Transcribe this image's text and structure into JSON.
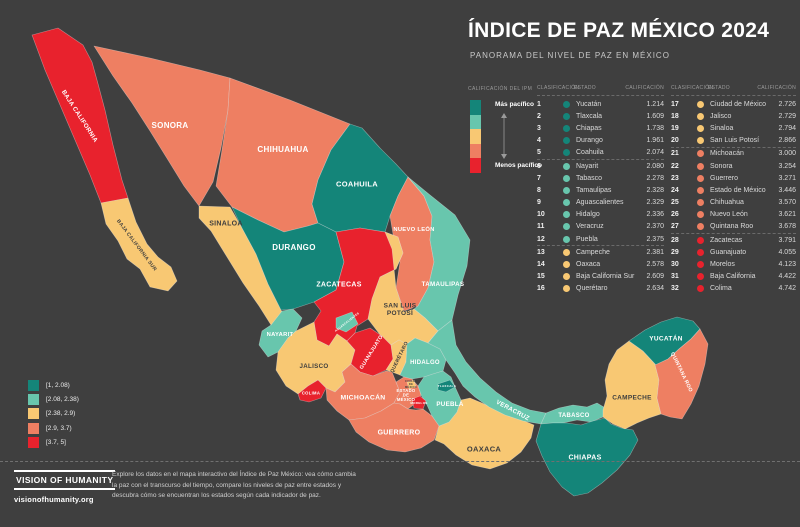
{
  "header": {
    "title": "ÍNDICE DE PAZ MÉXICO 2024",
    "subtitle": "PANORAMA DEL NIVEL DE PAZ EN MÉXICO"
  },
  "colors": {
    "dark_teal": "#148579",
    "light_teal": "#68c6ad",
    "amber": "#f8c873",
    "salmon": "#ee7f62",
    "red": "#e8222d",
    "background": "#3f3f3f"
  },
  "score_legend": {
    "heading": "CALIFICACIÓN DEL IPM",
    "top_label": "Más pacífico",
    "bottom_label": "Menos pacífico"
  },
  "range_legend": [
    {
      "label": "[1, 2.08)",
      "color_key": "dark_teal"
    },
    {
      "label": "[2.08, 2.38)",
      "color_key": "light_teal"
    },
    {
      "label": "[2.38, 2.9)",
      "color_key": "amber"
    },
    {
      "label": "[2.9, 3.7)",
      "color_key": "salmon"
    },
    {
      "label": "[3.7, 5]",
      "color_key": "red"
    }
  ],
  "table": {
    "headers": {
      "rank": "CLASIFICACIÓN",
      "state": "ESTADO",
      "score": "CALIFICACIÓN"
    },
    "group_breaks": [
      6,
      13,
      21,
      28
    ],
    "rows": [
      {
        "rank": 1,
        "state": "Yucatán",
        "score": "1.214",
        "color_key": "dark_teal"
      },
      {
        "rank": 2,
        "state": "Tlaxcala",
        "score": "1.609",
        "color_key": "dark_teal"
      },
      {
        "rank": 3,
        "state": "Chiapas",
        "score": "1.738",
        "color_key": "dark_teal"
      },
      {
        "rank": 4,
        "state": "Durango",
        "score": "1.961",
        "color_key": "dark_teal"
      },
      {
        "rank": 5,
        "state": "Coahuila",
        "score": "2.074",
        "color_key": "dark_teal"
      },
      {
        "rank": 6,
        "state": "Nayarit",
        "score": "2.080",
        "color_key": "light_teal"
      },
      {
        "rank": 7,
        "state": "Tabasco",
        "score": "2.278",
        "color_key": "light_teal"
      },
      {
        "rank": 8,
        "state": "Tamaulipas",
        "score": "2.328",
        "color_key": "light_teal"
      },
      {
        "rank": 9,
        "state": "Aguascalientes",
        "score": "2.329",
        "color_key": "light_teal"
      },
      {
        "rank": 10,
        "state": "Hidalgo",
        "score": "2.336",
        "color_key": "light_teal"
      },
      {
        "rank": 11,
        "state": "Veracruz",
        "score": "2.370",
        "color_key": "light_teal"
      },
      {
        "rank": 12,
        "state": "Puebla",
        "score": "2.375",
        "color_key": "light_teal"
      },
      {
        "rank": 13,
        "state": "Campeche",
        "score": "2.381",
        "color_key": "amber"
      },
      {
        "rank": 14,
        "state": "Oaxaca",
        "score": "2.578",
        "color_key": "amber"
      },
      {
        "rank": 15,
        "state": "Baja California Sur",
        "score": "2.609",
        "color_key": "amber"
      },
      {
        "rank": 16,
        "state": "Querétaro",
        "score": "2.634",
        "color_key": "amber"
      },
      {
        "rank": 17,
        "state": "Ciudad de México",
        "score": "2.726",
        "color_key": "amber"
      },
      {
        "rank": 18,
        "state": "Jalisco",
        "score": "2.729",
        "color_key": "amber"
      },
      {
        "rank": 19,
        "state": "Sinaloa",
        "score": "2.794",
        "color_key": "amber"
      },
      {
        "rank": 20,
        "state": "San Luis Potosí",
        "score": "2.866",
        "color_key": "amber"
      },
      {
        "rank": 21,
        "state": "Michoacán",
        "score": "3.000",
        "color_key": "salmon"
      },
      {
        "rank": 22,
        "state": "Sonora",
        "score": "3.254",
        "color_key": "salmon"
      },
      {
        "rank": 23,
        "state": "Guerrero",
        "score": "3.271",
        "color_key": "salmon"
      },
      {
        "rank": 24,
        "state": "Estado de México",
        "score": "3.446",
        "color_key": "salmon"
      },
      {
        "rank": 25,
        "state": "Chihuahua",
        "score": "3.570",
        "color_key": "salmon"
      },
      {
        "rank": 26,
        "state": "Nuevo León",
        "score": "3.621",
        "color_key": "salmon"
      },
      {
        "rank": 27,
        "state": "Quintana Roo",
        "score": "3.678",
        "color_key": "salmon"
      },
      {
        "rank": 28,
        "state": "Zacatecas",
        "score": "3.791",
        "color_key": "red"
      },
      {
        "rank": 29,
        "state": "Guanajuato",
        "score": "4.055",
        "color_key": "red"
      },
      {
        "rank": 30,
        "state": "Morelos",
        "score": "4.123",
        "color_key": "red"
      },
      {
        "rank": 31,
        "state": "Baja California",
        "score": "4.422",
        "color_key": "red"
      },
      {
        "rank": 32,
        "state": "Colima",
        "score": "4.742",
        "color_key": "red"
      }
    ]
  },
  "map": {
    "states": [
      {
        "id": "sonora",
        "label": "SONORA",
        "color_key": "salmon",
        "label_style": "light"
      },
      {
        "id": "chihuahua",
        "label": "CHIHUAHUA",
        "color_key": "salmon",
        "label_style": "light"
      },
      {
        "id": "coahuila",
        "label": "COAHUILA",
        "color_key": "dark_teal",
        "label_style": "light"
      },
      {
        "id": "nuevo_leon",
        "label": "NUEVO LEÓN",
        "color_key": "salmon",
        "label_style": "light"
      },
      {
        "id": "tamaulipas",
        "label": "TAMAULIPAS",
        "color_key": "light_teal",
        "label_style": "light"
      },
      {
        "id": "baja_california",
        "label": "BAJA CALIFORNIA",
        "color_key": "red",
        "label_style": "light"
      },
      {
        "id": "baja_california_sur",
        "label": "BAJA CALIFORNIA SUR",
        "color_key": "amber",
        "label_style": "dark"
      },
      {
        "id": "sinaloa",
        "label": "SINALOA",
        "color_key": "amber",
        "label_style": "dark"
      },
      {
        "id": "durango",
        "label": "DURANGO",
        "color_key": "dark_teal",
        "label_style": "light"
      },
      {
        "id": "zacatecas",
        "label": "ZACATECAS",
        "color_key": "red",
        "label_style": "light"
      },
      {
        "id": "san_luis_potosi",
        "label": "SAN LUIS\nPOTOSÍ",
        "color_key": "amber",
        "label_style": "dark"
      },
      {
        "id": "nayarit",
        "label": "NAYARIT",
        "color_key": "light_teal",
        "label_style": "light"
      },
      {
        "id": "jalisco",
        "label": "JALISCO",
        "color_key": "amber",
        "label_style": "dark"
      },
      {
        "id": "guanajuato",
        "label": "GUANAJUATO",
        "color_key": "red",
        "label_style": "light"
      },
      {
        "id": "queretaro",
        "label": "QUERÉTARO",
        "color_key": "amber",
        "label_style": "dark"
      },
      {
        "id": "hidalgo",
        "label": "HIDALGO",
        "color_key": "light_teal",
        "label_style": "light"
      },
      {
        "id": "oaxaca",
        "label": "OAXACA",
        "color_key": "amber",
        "label_style": "dark"
      },
      {
        "id": "veracruz",
        "label": "VERACRUZ",
        "color_key": "light_teal",
        "label_style": "light"
      },
      {
        "id": "michoacan",
        "label": "MICHOACÁN",
        "color_key": "salmon",
        "label_style": "light"
      },
      {
        "id": "puebla",
        "label": "PUEBLA",
        "color_key": "light_teal",
        "label_style": "light"
      },
      {
        "id": "estado_de_mexico",
        "label": "ESTADO\nDE\nMÉXICO",
        "color_key": "salmon",
        "label_style": "light"
      },
      {
        "id": "guerrero",
        "label": "GUERRERO",
        "color_key": "salmon",
        "label_style": "light"
      },
      {
        "id": "colima",
        "label": "COLIMA",
        "color_key": "red",
        "label_style": "light"
      },
      {
        "id": "aguascalientes",
        "label": "AGUASCALIENTES",
        "color_key": "light_teal",
        "label_style": "light"
      },
      {
        "id": "ciudad_de_mexico",
        "label": "CIUDAD\nDE\nMÉXICO",
        "color_key": "amber",
        "label_style": "dark"
      },
      {
        "id": "tlaxcala",
        "label": "TLAXCALA",
        "color_key": "dark_teal",
        "label_style": "light"
      },
      {
        "id": "morelos",
        "label": "MORELOS",
        "color_key": "red",
        "label_style": "light"
      },
      {
        "id": "tabasco",
        "label": "TABASCO",
        "color_key": "light_teal",
        "label_style": "light"
      },
      {
        "id": "chiapas",
        "label": "CHIAPAS",
        "color_key": "dark_teal",
        "label_style": "light"
      },
      {
        "id": "campeche",
        "label": "CAMPECHE",
        "color_key": "amber",
        "label_style": "dark"
      },
      {
        "id": "yucatan",
        "label": "YUCATÁN",
        "color_key": "dark_teal",
        "label_style": "light"
      },
      {
        "id": "quintana_roo",
        "label": "QUINTANA ROO",
        "color_key": "salmon",
        "label_style": "light"
      }
    ]
  },
  "footer": {
    "logo": "VISION OF HUMANITY",
    "url": "visionofhumanity.org",
    "description": "Explore los datos en el mapa interactivo del Índice de Paz México: vea cómo cambia la paz con el transcurso del tiempo, compare los niveles de paz entre estados y descubra cómo se encuentran los estados según cada indicador de paz."
  }
}
